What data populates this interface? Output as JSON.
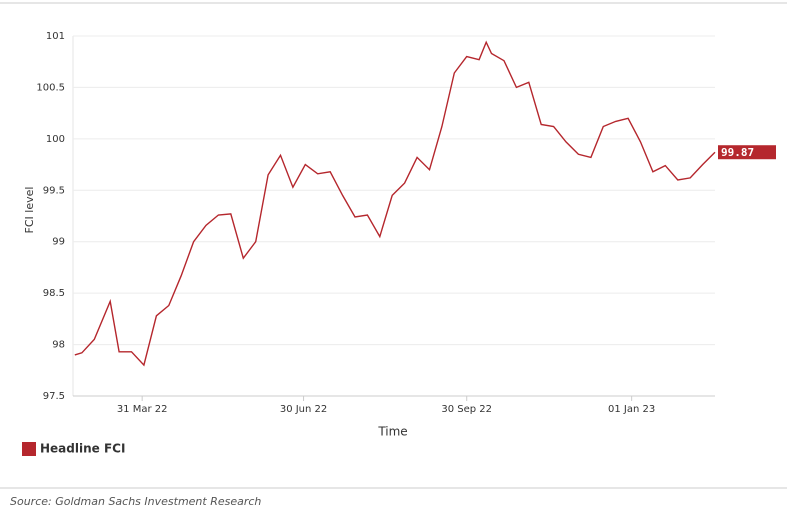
{
  "chart_data": {
    "type": "line",
    "x_label": "Time",
    "y_label": "FCI level",
    "x": [
      "2022-02-21",
      "2022-02-25",
      "2022-03-04",
      "2022-03-13",
      "2022-03-18",
      "2022-03-25",
      "2022-04-01",
      "2022-04-08",
      "2022-04-15",
      "2022-04-22",
      "2022-04-29",
      "2022-05-06",
      "2022-05-13",
      "2022-05-20",
      "2022-05-27",
      "2022-06-03",
      "2022-06-10",
      "2022-06-17",
      "2022-06-24",
      "2022-07-01",
      "2022-07-08",
      "2022-07-15",
      "2022-07-22",
      "2022-07-29",
      "2022-08-05",
      "2022-08-12",
      "2022-08-19",
      "2022-08-26",
      "2022-09-02",
      "2022-09-09",
      "2022-09-16",
      "2022-09-23",
      "2022-09-30",
      "2022-10-07",
      "2022-10-11",
      "2022-10-14",
      "2022-10-21",
      "2022-10-28",
      "2022-11-04",
      "2022-11-11",
      "2022-11-18",
      "2022-11-25",
      "2022-12-02",
      "2022-12-09",
      "2022-12-16",
      "2022-12-23",
      "2022-12-30",
      "2023-01-06",
      "2023-01-13",
      "2023-01-20",
      "2023-01-27",
      "2023-02-03",
      "2023-02-10",
      "2023-02-17"
    ],
    "series": [
      {
        "name": "Headline FCI",
        "color": "#b5272d",
        "values": [
          97.9,
          97.92,
          98.05,
          98.42,
          97.93,
          97.93,
          97.8,
          98.28,
          98.38,
          98.67,
          99.0,
          99.16,
          99.26,
          99.27,
          98.84,
          99.0,
          99.65,
          99.84,
          99.53,
          99.75,
          99.66,
          99.68,
          99.45,
          99.24,
          99.26,
          99.05,
          99.45,
          99.57,
          99.82,
          99.7,
          100.12,
          100.64,
          100.8,
          100.77,
          100.94,
          100.83,
          100.76,
          100.5,
          100.55,
          100.14,
          100.12,
          99.97,
          99.85,
          99.82,
          100.12,
          100.17,
          100.2,
          99.97,
          99.68,
          99.74,
          99.6,
          99.62,
          99.75,
          99.87
        ]
      }
    ],
    "xlim": [
      "2022-02-20",
      "2023-02-17"
    ],
    "xticks": [
      {
        "value": "2022-03-31",
        "label": "31 Mar 22"
      },
      {
        "value": "2022-06-30",
        "label": "30 Jun 22"
      },
      {
        "value": "2022-09-30",
        "label": "30 Sep 22"
      },
      {
        "value": "2023-01-01",
        "label": "01 Jan 23"
      }
    ],
    "ylim": [
      97.5,
      101
    ],
    "yticks": [
      97.5,
      98,
      98.5,
      99,
      99.5,
      100,
      100.5,
      101
    ],
    "grid": true,
    "legend": "bottom-left",
    "source": "Source: Goldman Sachs Investment Research"
  }
}
